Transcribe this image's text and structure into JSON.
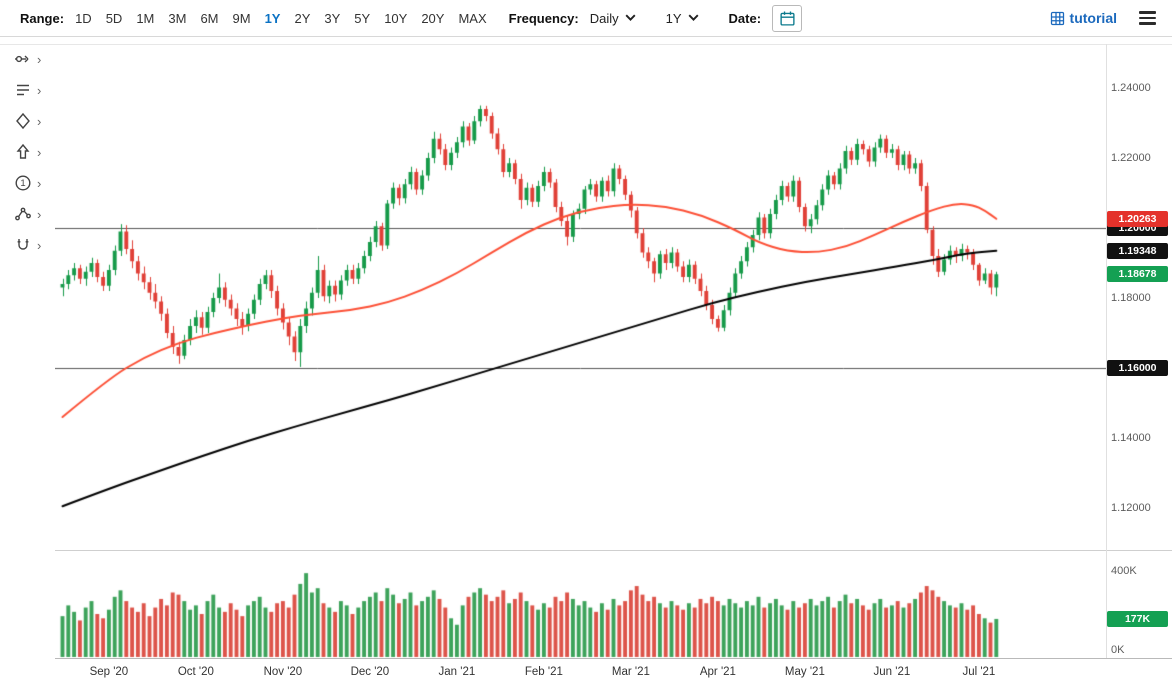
{
  "toolbar": {
    "range_label": "Range:",
    "ranges": [
      "1D",
      "5D",
      "1M",
      "3M",
      "6M",
      "9M",
      "1Y",
      "2Y",
      "3Y",
      "5Y",
      "10Y",
      "20Y",
      "MAX"
    ],
    "active_range": "1Y",
    "frequency_label": "Frequency:",
    "frequency_value": "Daily",
    "period_value": "1Y",
    "date_label": "Date:",
    "brand": "tutorial"
  },
  "drawing_tools": [
    {
      "name": "measure-tool"
    },
    {
      "name": "annotation-tool"
    },
    {
      "name": "shapes-tool"
    },
    {
      "name": "arrow-tool"
    },
    {
      "name": "number-tool"
    },
    {
      "name": "pattern-tool"
    },
    {
      "name": "magnet-tool"
    }
  ],
  "chart_data": {
    "type": "candlestick",
    "colors": {
      "candle_up": "#169a49",
      "candle_down": "#e04037",
      "volume_up": "#3da35b",
      "volume_down": "#dd544a",
      "ma_red": "#fc4f35",
      "ma_black": "#000000",
      "line_badge_bg": "#111111",
      "red_badge_bg": "#e4322b",
      "green_badge_bg": "#14a053"
    },
    "price_axis_labels": [
      {
        "text": "1.24000",
        "value": 1.24
      },
      {
        "text": "1.22000",
        "value": 1.22
      },
      {
        "text": "1.18000",
        "value": 1.18
      },
      {
        "text": "1.14000",
        "value": 1.14
      },
      {
        "text": "1.12000",
        "value": 1.12
      }
    ],
    "horizontal_lines": [
      {
        "value": 1.2,
        "label": "1.20000"
      },
      {
        "value": 1.16,
        "label": "1.16000"
      }
    ],
    "price_badges": [
      {
        "text": "1.20263",
        "value": 1.20263,
        "kind": "red"
      },
      {
        "text": "1.19348",
        "value": 1.19348,
        "kind": "black"
      },
      {
        "text": "1.18678",
        "value": 1.18678,
        "kind": "green"
      }
    ],
    "volume_axis": {
      "labels": [
        {
          "text": "400K",
          "value": 400
        },
        {
          "text": "0K",
          "value": 0
        }
      ],
      "badge": {
        "text": "177K",
        "value": 177
      },
      "max": 400
    },
    "x_ticks": [
      {
        "label": "Sep '20",
        "i": 8
      },
      {
        "label": "Oct '20",
        "i": 23
      },
      {
        "label": "Nov '20",
        "i": 38
      },
      {
        "label": "Dec '20",
        "i": 53
      },
      {
        "label": "Jan '21",
        "i": 68
      },
      {
        "label": "Feb '21",
        "i": 83
      },
      {
        "label": "Mar '21",
        "i": 98
      },
      {
        "label": "Apr '21",
        "i": 113
      },
      {
        "label": "May '21",
        "i": 128
      },
      {
        "label": "Jun '21",
        "i": 143
      },
      {
        "label": "Jul '21",
        "i": 158
      }
    ],
    "ma_red_points": [
      [
        0,
        1.146
      ],
      [
        8,
        1.157
      ],
      [
        14,
        1.163
      ],
      [
        20,
        1.1672
      ],
      [
        26,
        1.17
      ],
      [
        32,
        1.1722
      ],
      [
        38,
        1.1742
      ],
      [
        44,
        1.1756
      ],
      [
        50,
        1.1766
      ],
      [
        56,
        1.1786
      ],
      [
        62,
        1.1822
      ],
      [
        68,
        1.187
      ],
      [
        74,
        1.193
      ],
      [
        80,
        1.1988
      ],
      [
        86,
        1.2032
      ],
      [
        92,
        1.2058
      ],
      [
        98,
        1.2068
      ],
      [
        104,
        1.2062
      ],
      [
        110,
        1.2038
      ],
      [
        116,
        1.1995
      ],
      [
        120,
        1.1958
      ],
      [
        125,
        1.1933
      ],
      [
        130,
        1.193
      ],
      [
        135,
        1.1945
      ],
      [
        140,
        1.198
      ],
      [
        145,
        1.2018
      ],
      [
        150,
        1.2052
      ],
      [
        154,
        1.207
      ],
      [
        157,
        1.2066
      ],
      [
        159,
        1.205
      ],
      [
        161,
        1.20263
      ]
    ],
    "ma_black_points": [
      [
        0,
        1.1205
      ],
      [
        8,
        1.1255
      ],
      [
        16,
        1.1302
      ],
      [
        24,
        1.1348
      ],
      [
        32,
        1.1392
      ],
      [
        40,
        1.1432
      ],
      [
        48,
        1.147
      ],
      [
        56,
        1.1507
      ],
      [
        64,
        1.1546
      ],
      [
        72,
        1.1586
      ],
      [
        80,
        1.1626
      ],
      [
        88,
        1.1666
      ],
      [
        96,
        1.1706
      ],
      [
        104,
        1.1746
      ],
      [
        112,
        1.1786
      ],
      [
        120,
        1.1818
      ],
      [
        128,
        1.1846
      ],
      [
        136,
        1.1868
      ],
      [
        144,
        1.189
      ],
      [
        150,
        1.1908
      ],
      [
        156,
        1.1928
      ],
      [
        161,
        1.19348
      ]
    ],
    "candles": [
      [
        1.183,
        1.1855,
        1.1805,
        1.184
      ],
      [
        1.184,
        1.188,
        1.1825,
        1.1865
      ],
      [
        1.1865,
        1.19,
        1.185,
        1.1885
      ],
      [
        1.1885,
        1.1895,
        1.184,
        1.1855
      ],
      [
        1.1855,
        1.189,
        1.1835,
        1.1875
      ],
      [
        1.1875,
        1.1915,
        1.186,
        1.19
      ],
      [
        1.19,
        1.191,
        1.1845,
        1.186
      ],
      [
        1.186,
        1.1875,
        1.182,
        1.1835
      ],
      [
        1.1835,
        1.1895,
        1.182,
        1.188
      ],
      [
        1.188,
        1.195,
        1.1865,
        1.1935
      ],
      [
        1.1935,
        1.2011,
        1.192,
        1.199
      ],
      [
        1.199,
        1.2008,
        1.1925,
        1.194
      ],
      [
        1.194,
        1.1965,
        1.1885,
        1.1905
      ],
      [
        1.1905,
        1.192,
        1.185,
        1.187
      ],
      [
        1.187,
        1.189,
        1.1825,
        1.1845
      ],
      [
        1.1845,
        1.186,
        1.1795,
        1.1815
      ],
      [
        1.1815,
        1.184,
        1.177,
        1.179
      ],
      [
        1.179,
        1.1805,
        1.1735,
        1.1755
      ],
      [
        1.1755,
        1.177,
        1.1685,
        1.17
      ],
      [
        1.17,
        1.172,
        1.164,
        1.166
      ],
      [
        1.166,
        1.1675,
        1.1612,
        1.1635
      ],
      [
        1.1635,
        1.1695,
        1.1625,
        1.168
      ],
      [
        1.168,
        1.174,
        1.1665,
        1.172
      ],
      [
        1.172,
        1.1765,
        1.17,
        1.1745
      ],
      [
        1.1745,
        1.176,
        1.1695,
        1.1715
      ],
      [
        1.1715,
        1.1775,
        1.17,
        1.176
      ],
      [
        1.176,
        1.1815,
        1.1745,
        1.18
      ],
      [
        1.18,
        1.187,
        1.1785,
        1.183
      ],
      [
        1.183,
        1.1845,
        1.1775,
        1.1795
      ],
      [
        1.1795,
        1.181,
        1.175,
        1.177
      ],
      [
        1.177,
        1.1785,
        1.172,
        1.174
      ],
      [
        1.174,
        1.176,
        1.1695,
        1.172
      ],
      [
        1.172,
        1.177,
        1.1705,
        1.1755
      ],
      [
        1.1755,
        1.181,
        1.174,
        1.1795
      ],
      [
        1.1795,
        1.1855,
        1.178,
        1.184
      ],
      [
        1.184,
        1.188,
        1.1825,
        1.1865
      ],
      [
        1.1865,
        1.188,
        1.18,
        1.182
      ],
      [
        1.182,
        1.1835,
        1.175,
        1.177
      ],
      [
        1.177,
        1.1785,
        1.171,
        1.173
      ],
      [
        1.173,
        1.1745,
        1.1665,
        1.169
      ],
      [
        1.169,
        1.1705,
        1.162,
        1.1645
      ],
      [
        1.1645,
        1.174,
        1.1603,
        1.172
      ],
      [
        1.172,
        1.179,
        1.17,
        1.177
      ],
      [
        1.177,
        1.183,
        1.175,
        1.1815
      ],
      [
        1.1815,
        1.192,
        1.18,
        1.188
      ],
      [
        1.188,
        1.1895,
        1.179,
        1.1805
      ],
      [
        1.1805,
        1.185,
        1.1785,
        1.1835
      ],
      [
        1.1835,
        1.185,
        1.179,
        1.181
      ],
      [
        1.181,
        1.1865,
        1.1795,
        1.185
      ],
      [
        1.185,
        1.1895,
        1.1835,
        1.188
      ],
      [
        1.188,
        1.1895,
        1.184,
        1.1855
      ],
      [
        1.1855,
        1.19,
        1.184,
        1.1885
      ],
      [
        1.1885,
        1.1935,
        1.187,
        1.192
      ],
      [
        1.192,
        1.1975,
        1.1905,
        1.196
      ],
      [
        1.196,
        1.202,
        1.1945,
        1.2005
      ],
      [
        1.2005,
        1.2015,
        1.1935,
        1.195
      ],
      [
        1.195,
        1.208,
        1.194,
        1.207
      ],
      [
        1.207,
        1.213,
        1.2055,
        1.2115
      ],
      [
        1.2115,
        1.2125,
        1.2065,
        1.2085
      ],
      [
        1.2085,
        1.214,
        1.207,
        1.2125
      ],
      [
        1.2125,
        1.2175,
        1.211,
        1.216
      ],
      [
        1.216,
        1.217,
        1.2095,
        1.211
      ],
      [
        1.211,
        1.2165,
        1.2095,
        1.215
      ],
      [
        1.215,
        1.2215,
        1.2135,
        1.22
      ],
      [
        1.22,
        1.2275,
        1.2185,
        1.2255
      ],
      [
        1.2255,
        1.227,
        1.221,
        1.2225
      ],
      [
        1.2225,
        1.224,
        1.2165,
        1.218
      ],
      [
        1.218,
        1.223,
        1.2165,
        1.2215
      ],
      [
        1.2215,
        1.226,
        1.22,
        1.2245
      ],
      [
        1.2245,
        1.2305,
        1.223,
        1.229
      ],
      [
        1.229,
        1.23,
        1.2235,
        1.225
      ],
      [
        1.225,
        1.232,
        1.224,
        1.2305
      ],
      [
        1.2305,
        1.235,
        1.229,
        1.234
      ],
      [
        1.234,
        1.2349,
        1.2305,
        1.232
      ],
      [
        1.232,
        1.233,
        1.2255,
        1.227
      ],
      [
        1.227,
        1.2285,
        1.221,
        1.2225
      ],
      [
        1.2225,
        1.224,
        1.2145,
        1.216
      ],
      [
        1.216,
        1.22,
        1.2145,
        1.2185
      ],
      [
        1.2185,
        1.2195,
        1.2125,
        1.214
      ],
      [
        1.214,
        1.2155,
        1.2055,
        1.208
      ],
      [
        1.208,
        1.213,
        1.2065,
        1.2115
      ],
      [
        1.2115,
        1.2125,
        1.206,
        1.2075
      ],
      [
        1.2075,
        1.2135,
        1.206,
        1.212
      ],
      [
        1.212,
        1.2175,
        1.2105,
        1.216
      ],
      [
        1.216,
        1.217,
        1.2115,
        1.213
      ],
      [
        1.213,
        1.214,
        1.2045,
        1.206
      ],
      [
        1.206,
        1.2075,
        1.2005,
        1.202
      ],
      [
        1.202,
        1.2035,
        1.195,
        1.1975
      ],
      [
        1.1975,
        1.205,
        1.196,
        1.204
      ],
      [
        1.204,
        1.207,
        1.2025,
        1.2055
      ],
      [
        1.2055,
        1.212,
        1.204,
        1.211
      ],
      [
        1.211,
        1.214,
        1.2095,
        1.2125
      ],
      [
        1.2125,
        1.2135,
        1.2075,
        1.209
      ],
      [
        1.209,
        1.2145,
        1.2075,
        1.2135
      ],
      [
        1.2135,
        1.215,
        1.209,
        1.2105
      ],
      [
        1.2105,
        1.2185,
        1.209,
        1.217
      ],
      [
        1.217,
        1.218,
        1.2125,
        1.214
      ],
      [
        1.214,
        1.215,
        1.208,
        1.2095
      ],
      [
        1.2095,
        1.2105,
        1.203,
        1.205
      ],
      [
        1.205,
        1.206,
        1.197,
        1.1985
      ],
      [
        1.1985,
        1.2,
        1.1915,
        1.193
      ],
      [
        1.193,
        1.1945,
        1.1885,
        1.1905
      ],
      [
        1.1905,
        1.1915,
        1.1845,
        1.187
      ],
      [
        1.187,
        1.1935,
        1.1855,
        1.1925
      ],
      [
        1.1925,
        1.194,
        1.188,
        1.19
      ],
      [
        1.19,
        1.1945,
        1.1885,
        1.193
      ],
      [
        1.193,
        1.194,
        1.1875,
        1.189
      ],
      [
        1.189,
        1.1905,
        1.1845,
        1.186
      ],
      [
        1.186,
        1.191,
        1.1845,
        1.1895
      ],
      [
        1.1895,
        1.1905,
        1.184,
        1.1855
      ],
      [
        1.1855,
        1.187,
        1.1805,
        1.182
      ],
      [
        1.182,
        1.1835,
        1.1765,
        1.178
      ],
      [
        1.178,
        1.1795,
        1.1725,
        1.174
      ],
      [
        1.174,
        1.175,
        1.1704,
        1.1715
      ],
      [
        1.1715,
        1.178,
        1.1705,
        1.1765
      ],
      [
        1.1765,
        1.183,
        1.175,
        1.1815
      ],
      [
        1.1815,
        1.1885,
        1.18,
        1.187
      ],
      [
        1.187,
        1.192,
        1.1855,
        1.1905
      ],
      [
        1.1905,
        1.196,
        1.189,
        1.1945
      ],
      [
        1.1945,
        1.1995,
        1.193,
        1.198
      ],
      [
        1.198,
        1.2045,
        1.1965,
        1.203
      ],
      [
        1.203,
        1.204,
        1.197,
        1.1985
      ],
      [
        1.1985,
        1.2055,
        1.197,
        1.204
      ],
      [
        1.204,
        1.2095,
        1.2025,
        1.208
      ],
      [
        1.208,
        1.2135,
        1.2065,
        1.212
      ],
      [
        1.212,
        1.213,
        1.2075,
        1.209
      ],
      [
        1.209,
        1.215,
        1.2075,
        1.2135
      ],
      [
        1.2135,
        1.2145,
        1.2045,
        1.206
      ],
      [
        1.206,
        1.207,
        1.199,
        1.2005
      ],
      [
        1.2005,
        1.204,
        1.1985,
        1.2025
      ],
      [
        1.2025,
        1.208,
        1.201,
        1.2065
      ],
      [
        1.2065,
        1.2125,
        1.205,
        1.211
      ],
      [
        1.211,
        1.2165,
        1.2095,
        1.215
      ],
      [
        1.215,
        1.216,
        1.211,
        1.2125
      ],
      [
        1.2125,
        1.2185,
        1.211,
        1.217
      ],
      [
        1.217,
        1.2235,
        1.2155,
        1.222
      ],
      [
        1.222,
        1.223,
        1.218,
        1.2195
      ],
      [
        1.2195,
        1.2255,
        1.218,
        1.224
      ],
      [
        1.224,
        1.225,
        1.221,
        1.2225
      ],
      [
        1.2225,
        1.2235,
        1.2175,
        1.219
      ],
      [
        1.219,
        1.2245,
        1.2175,
        1.223
      ],
      [
        1.223,
        1.2267,
        1.2215,
        1.2255
      ],
      [
        1.2255,
        1.2265,
        1.22,
        1.2215
      ],
      [
        1.2215,
        1.224,
        1.22,
        1.2225
      ],
      [
        1.2225,
        1.2235,
        1.2165,
        1.218
      ],
      [
        1.218,
        1.222,
        1.2165,
        1.221
      ],
      [
        1.221,
        1.222,
        1.2155,
        1.217
      ],
      [
        1.217,
        1.22,
        1.2155,
        1.2185
      ],
      [
        1.2185,
        1.2195,
        1.2105,
        1.212
      ],
      [
        1.212,
        1.213,
        1.1985,
        1.1995
      ],
      [
        1.1995,
        1.2005,
        1.1895,
        1.192
      ],
      [
        1.192,
        1.194,
        1.186,
        1.1875
      ],
      [
        1.1875,
        1.1925,
        1.1865,
        1.191
      ],
      [
        1.191,
        1.195,
        1.1895,
        1.1935
      ],
      [
        1.1935,
        1.1945,
        1.19,
        1.192
      ],
      [
        1.192,
        1.1955,
        1.1905,
        1.194
      ],
      [
        1.194,
        1.195,
        1.191,
        1.193
      ],
      [
        1.193,
        1.194,
        1.188,
        1.1895
      ],
      [
        1.1895,
        1.19,
        1.1835,
        1.185
      ],
      [
        1.185,
        1.1885,
        1.184,
        1.187
      ],
      [
        1.187,
        1.188,
        1.181,
        1.183
      ],
      [
        1.183,
        1.1875,
        1.1805,
        1.18678
      ]
    ],
    "volumes": [
      190,
      240,
      210,
      170,
      230,
      260,
      200,
      180,
      220,
      280,
      310,
      260,
      230,
      210,
      250,
      190,
      230,
      270,
      240,
      300,
      290,
      260,
      220,
      240,
      200,
      260,
      290,
      230,
      210,
      250,
      220,
      190,
      240,
      260,
      280,
      230,
      210,
      250,
      260,
      230,
      290,
      340,
      390,
      300,
      320,
      250,
      230,
      210,
      260,
      240,
      200,
      230,
      260,
      280,
      300,
      260,
      320,
      290,
      250,
      270,
      300,
      240,
      260,
      280,
      310,
      270,
      230,
      180,
      150,
      240,
      280,
      300,
      320,
      290,
      260,
      280,
      310,
      250,
      270,
      300,
      260,
      240,
      220,
      250,
      230,
      280,
      260,
      300,
      270,
      240,
      260,
      230,
      210,
      250,
      220,
      270,
      240,
      260,
      310,
      330,
      290,
      260,
      280,
      250,
      230,
      260,
      240,
      220,
      250,
      230,
      270,
      250,
      280,
      260,
      240,
      270,
      250,
      230,
      260,
      240,
      280,
      230,
      250,
      270,
      240,
      220,
      260,
      230,
      250,
      270,
      240,
      260,
      280,
      230,
      260,
      290,
      250,
      270,
      240,
      220,
      250,
      270,
      230,
      240,
      260,
      230,
      250,
      270,
      300,
      330,
      310,
      280,
      260,
      240,
      230,
      250,
      220,
      240,
      200,
      180,
      160,
      177
    ]
  }
}
